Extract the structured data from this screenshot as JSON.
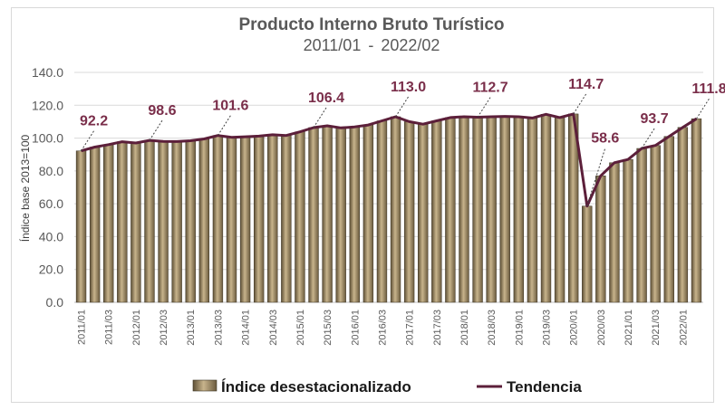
{
  "chart_data": {
    "type": "bar",
    "title": "Producto Interno Bruto Turístico",
    "subtitle_start": "2011/01",
    "subtitle_sep": "-",
    "subtitle_end": "2022/02",
    "ylabel": "Índice base 2013=100",
    "xlabel": "",
    "ylim": [
      0,
      140
    ],
    "yticks": [
      "0.0",
      "20.0",
      "40.0",
      "60.0",
      "80.0",
      "100.0",
      "120.0",
      "140.0"
    ],
    "grid": true,
    "legend_position": "bottom",
    "colors": {
      "bars": "#8c7a58",
      "bars_light": "#c8b48c",
      "trend": "#5c1f3a",
      "labels": "#7a2e4a"
    },
    "categories": [
      "2011/01",
      "2011/02",
      "2011/03",
      "2011/04",
      "2012/01",
      "2012/02",
      "2012/03",
      "2012/04",
      "2013/01",
      "2013/02",
      "2013/03",
      "2013/04",
      "2014/01",
      "2014/02",
      "2014/03",
      "2014/04",
      "2015/01",
      "2015/02",
      "2015/03",
      "2015/04",
      "2016/01",
      "2016/02",
      "2016/03",
      "2016/04",
      "2017/01",
      "2017/02",
      "2017/03",
      "2017/04",
      "2018/01",
      "2018/02",
      "2018/03",
      "2018/04",
      "2019/01",
      "2019/02",
      "2019/03",
      "2019/04",
      "2020/01",
      "2020/02",
      "2020/03",
      "2020/04",
      "2021/01",
      "2021/02",
      "2021/03",
      "2021/04",
      "2022/01",
      "2022/02"
    ],
    "tick_labels": [
      "2011/01",
      "2011/03",
      "2012/01",
      "2012/03",
      "2013/01",
      "2013/03",
      "2014/01",
      "2014/03",
      "2015/01",
      "2015/03",
      "2016/01",
      "2016/03",
      "2017/01",
      "2017/03",
      "2018/01",
      "2018/03",
      "2019/01",
      "2019/03",
      "2020/01",
      "2020/03",
      "2021/01",
      "2021/03",
      "2022/01"
    ],
    "series": [
      {
        "name": "Índice desestacionalizado",
        "type": "bar",
        "values": [
          92.2,
          94.5,
          96.0,
          97.8,
          97.0,
          98.6,
          98.0,
          97.9,
          98.4,
          99.5,
          101.6,
          100.5,
          100.8,
          101.2,
          102.0,
          101.6,
          103.8,
          106.4,
          107.5,
          106.2,
          106.8,
          108.0,
          110.5,
          113.0,
          110.0,
          108.5,
          110.5,
          112.5,
          113.0,
          112.7,
          113.0,
          113.2,
          113.0,
          112.2,
          114.5,
          112.5,
          114.7,
          58.6,
          77.0,
          85.0,
          87.0,
          93.7,
          95.5,
          101.0,
          106.5,
          111.8
        ]
      },
      {
        "name": "Tendencia",
        "type": "line",
        "values": [
          92.2,
          94.5,
          96.0,
          97.8,
          97.0,
          98.6,
          98.0,
          97.9,
          98.4,
          99.5,
          101.6,
          100.5,
          100.8,
          101.2,
          102.0,
          101.6,
          103.8,
          106.4,
          107.5,
          106.2,
          106.8,
          108.0,
          110.5,
          113.0,
          110.0,
          108.5,
          110.5,
          112.5,
          113.0,
          112.7,
          113.0,
          113.2,
          113.0,
          112.2,
          114.5,
          112.5,
          114.7,
          58.6,
          77.0,
          85.0,
          87.0,
          93.7,
          95.5,
          101.0,
          106.5,
          111.8
        ]
      }
    ],
    "annotations": [
      {
        "index": 0,
        "text": "92.2"
      },
      {
        "index": 5,
        "text": "98.6"
      },
      {
        "index": 10,
        "text": "101.6"
      },
      {
        "index": 17,
        "text": "106.4"
      },
      {
        "index": 23,
        "text": "113.0"
      },
      {
        "index": 29,
        "text": "112.7"
      },
      {
        "index": 36,
        "text": "114.7"
      },
      {
        "index": 37,
        "text": "58.6"
      },
      {
        "index": 41,
        "text": "93.7"
      },
      {
        "index": 45,
        "text": "111.8"
      }
    ]
  }
}
